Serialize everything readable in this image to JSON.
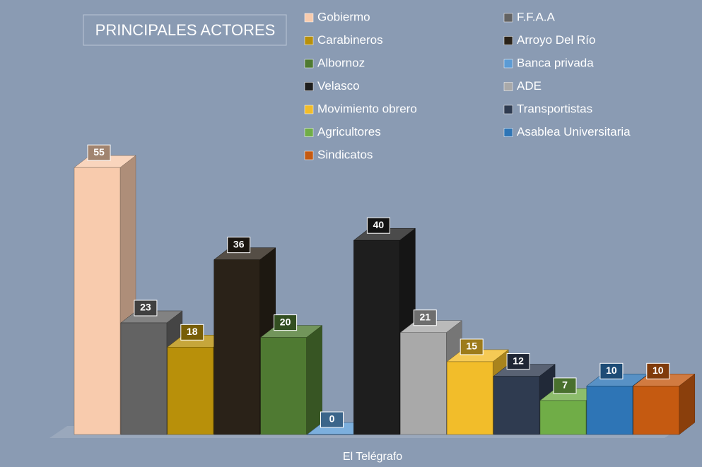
{
  "chart_data": {
    "type": "bar3d",
    "title": "PRINCIPALES ACTORES",
    "categories": [
      "El Telégrafo"
    ],
    "series": [
      {
        "name": "Gobiermo",
        "color": "#f8cbad",
        "values": [
          55
        ]
      },
      {
        "name": "F.F.A.A",
        "color": "#636363",
        "values": [
          23
        ]
      },
      {
        "name": "Carabineros",
        "color": "#b8900a",
        "values": [
          18
        ]
      },
      {
        "name": "Arroyo Del Río",
        "color": "#2a2218",
        "values": [
          36
        ]
      },
      {
        "name": "Albornoz",
        "color": "#4f7a32",
        "values": [
          20
        ]
      },
      {
        "name": "Banca privada",
        "color": "#5b9bd5",
        "values": [
          0
        ]
      },
      {
        "name": "Velasco",
        "color": "#1e1e1e",
        "values": [
          40
        ]
      },
      {
        "name": "ADE",
        "color": "#a9a9a9",
        "values": [
          21
        ]
      },
      {
        "name": "Movimiento obrero",
        "color": "#f2bd2a",
        "values": [
          15
        ]
      },
      {
        "name": "Transportistas",
        "color": "#2f3b50",
        "values": [
          12
        ]
      },
      {
        "name": "Agricultores",
        "color": "#70ad47",
        "values": [
          7
        ]
      },
      {
        "name": "Asablea Universitaria",
        "color": "#2e75b6",
        "values": [
          10
        ]
      },
      {
        "name": "Sindicatos",
        "color": "#c55a11",
        "values": [
          10
        ]
      }
    ]
  }
}
